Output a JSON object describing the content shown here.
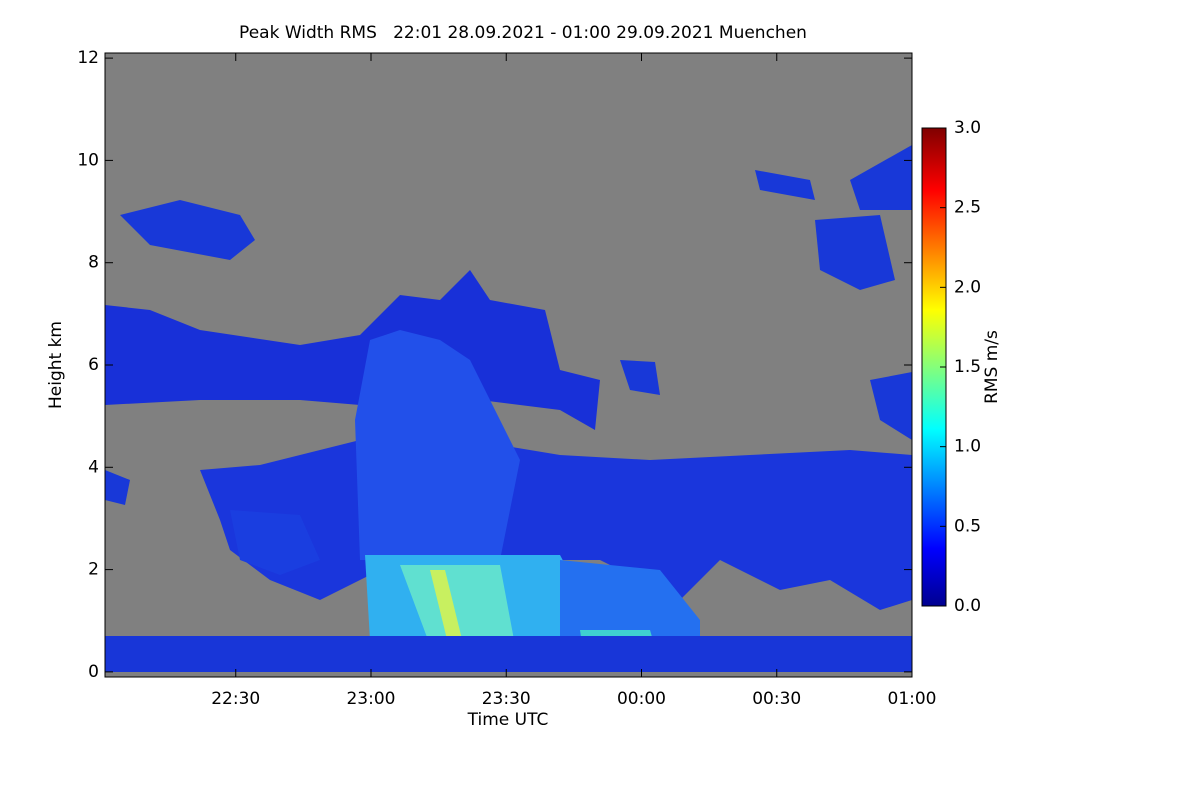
{
  "chart_data": {
    "type": "heatmap",
    "title": "Peak Width RMS   22:01 28.09.2021 - 01:00 29.09.2021 Muenchen",
    "xlabel": "Time UTC",
    "ylabel": "Height km",
    "colorbar_label": "RMS m/s",
    "xlim": [
      1,
      180
    ],
    "xticks": [
      {
        "value": 30,
        "label": "22:30"
      },
      {
        "value": 60,
        "label": "23:00"
      },
      {
        "value": 90,
        "label": "23:30"
      },
      {
        "value": 120,
        "label": "00:00"
      },
      {
        "value": 150,
        "label": "00:30"
      },
      {
        "value": 180,
        "label": "01:00"
      }
    ],
    "ylim": [
      -0.1,
      12.1
    ],
    "yticks": [
      0,
      2,
      4,
      6,
      8,
      10,
      12
    ],
    "clim": [
      0,
      3
    ],
    "cticks": [
      {
        "value": 0,
        "label": "0.0"
      },
      {
        "value": 0.5,
        "label": "0.5"
      },
      {
        "value": 1,
        "label": "1.0"
      },
      {
        "value": 1.5,
        "label": "1.5"
      },
      {
        "value": 2,
        "label": "2.0"
      },
      {
        "value": 2.5,
        "label": "2.5"
      },
      {
        "value": 3,
        "label": "3.0"
      }
    ]
  }
}
